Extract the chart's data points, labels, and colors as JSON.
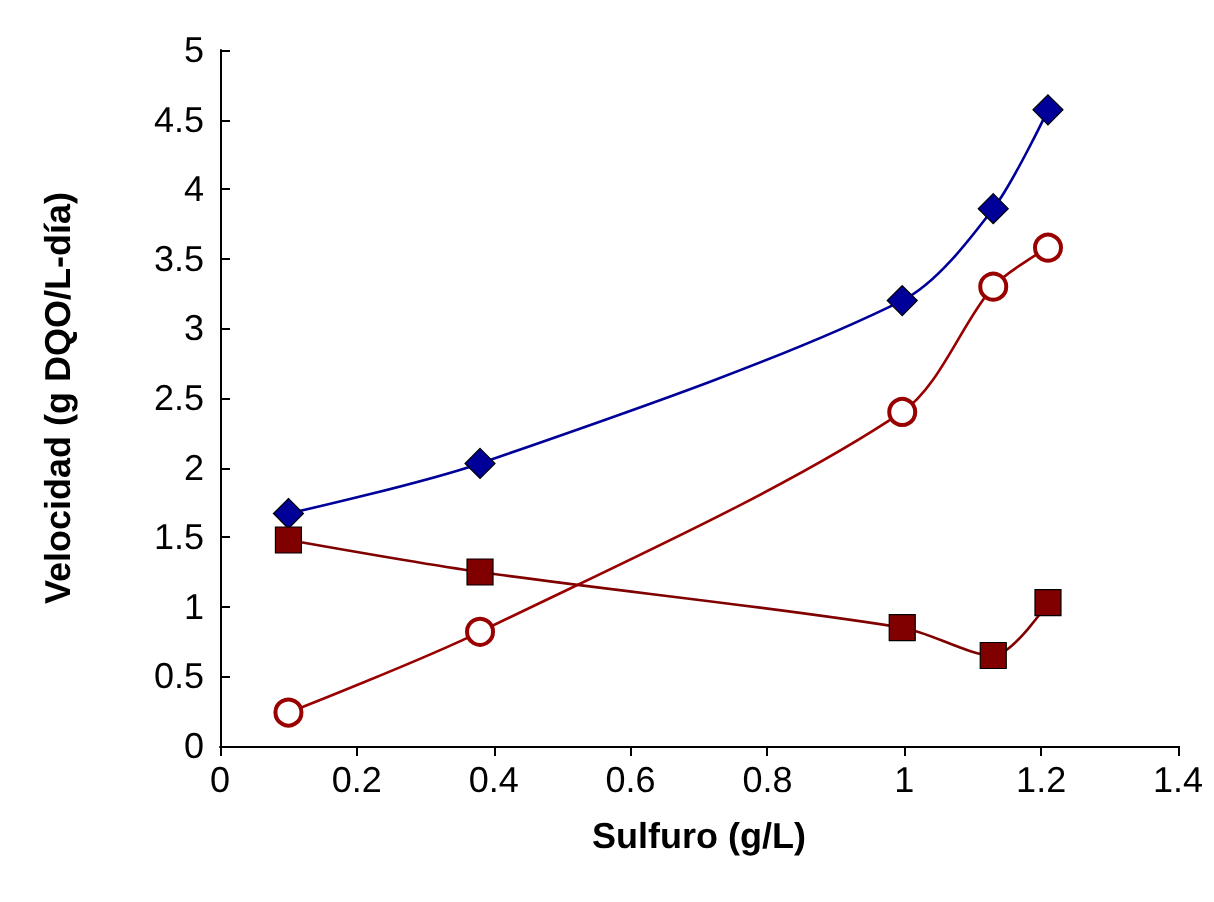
{
  "chart_data": {
    "type": "line",
    "xlabel": "Sulfuro (g/L)",
    "ylabel": "Velocidad (g DQO/L-día)",
    "x": [
      0.1,
      0.38,
      0.997,
      1.13,
      1.21
    ],
    "series": [
      {
        "color": "#000099",
        "marker": "diamond",
        "values": [
          1.67,
          2.03,
          3.2,
          3.86,
          4.57
        ]
      },
      {
        "color": "#800000",
        "marker": "square",
        "values": [
          1.48,
          1.25,
          0.85,
          0.65,
          1.03
        ]
      },
      {
        "color": "#990000",
        "marker": "circle",
        "values": [
          0.24,
          0.82,
          2.4,
          3.3,
          3.58
        ]
      }
    ],
    "xlim": [
      0,
      1.4
    ],
    "xticks": [
      0,
      0.2,
      0.4,
      0.6,
      0.8,
      1,
      1.2,
      1.4
    ],
    "ylim": [
      0,
      5
    ],
    "yticks": [
      0,
      0.5,
      1,
      1.5,
      2,
      2.5,
      3,
      3.5,
      4,
      4.5,
      5
    ]
  }
}
